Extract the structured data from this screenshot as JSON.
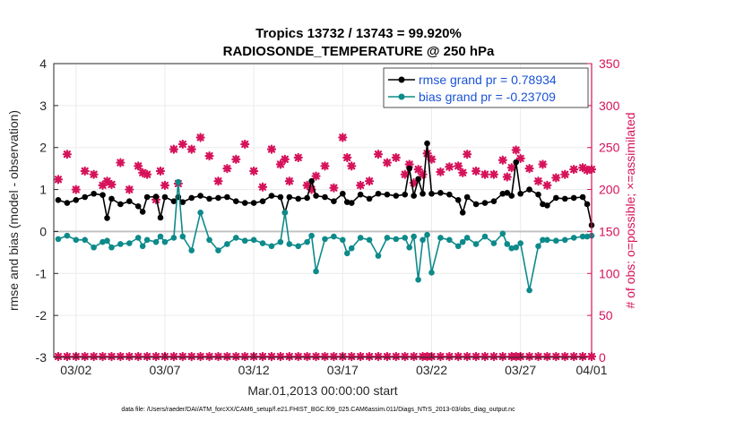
{
  "chart_data": {
    "type": "line",
    "title_line1": "Tropics 13732 / 13743 = 99.920%",
    "title_line2": "RADIOSONDE_TEMPERATURE @ 250 hPa",
    "xlabel": "Mar.01,2013 00:00:00 start",
    "ylabel_left": "rmse and bias (model - observation)",
    "ylabel_right": "# of obs: o=possible; ×=assimilated",
    "xlim": [
      0.75,
      31.0
    ],
    "ylim_left": [
      -3,
      4
    ],
    "ylim_right": [
      0,
      350
    ],
    "x_ticks": [
      {
        "x": 2,
        "label": "03/02"
      },
      {
        "x": 7,
        "label": "03/07"
      },
      {
        "x": 12,
        "label": "03/12"
      },
      {
        "x": 17,
        "label": "03/17"
      },
      {
        "x": 22,
        "label": "03/22"
      },
      {
        "x": 27,
        "label": "03/27"
      },
      {
        "x": 32,
        "label": "04/01"
      }
    ],
    "y_ticks_left": [
      "-3",
      "-2",
      "-1",
      "0",
      "1",
      "2",
      "3",
      "4"
    ],
    "y_ticks_right": [
      "0",
      "50",
      "100",
      "150",
      "200",
      "250",
      "300",
      "350"
    ],
    "grid": true,
    "legend_position": "top-right",
    "footer": "data file: /Users/raeder/DAI/ATM_forcXX/CAM6_setup/f.e21.FHIST_BGC.f09_025.CAM6assim.011/Diags_NTrS_2013-03/obs_diag_output.nc",
    "colors": {
      "rmse": "#000000",
      "bias": "#0d8a8a",
      "obs": "#d6125a",
      "zero": "#bfbfbf",
      "legend_text": "#1a53d6",
      "grid": "#ebebeb"
    },
    "series": [
      {
        "name": "rmse grand pr = 0.78934",
        "color": "#000000",
        "x": [
          1.0,
          1.5,
          2.0,
          2.5,
          3.0,
          3.5,
          3.75,
          4.0,
          4.5,
          5.0,
          5.5,
          5.75,
          6.0,
          6.5,
          6.75,
          7.0,
          7.5,
          7.75,
          8.0,
          8.5,
          9.0,
          9.5,
          10.0,
          10.5,
          11.0,
          11.5,
          12.0,
          12.5,
          13.0,
          13.5,
          13.75,
          14.0,
          14.5,
          15.0,
          15.25,
          15.5,
          16.0,
          16.5,
          17.0,
          17.25,
          17.5,
          18.0,
          18.5,
          19.0,
          19.5,
          20.0,
          20.5,
          20.75,
          21.0,
          21.25,
          21.5,
          21.75,
          22.0,
          22.5,
          23.0,
          23.5,
          23.75,
          24.0,
          24.5,
          25.0,
          25.5,
          26.0,
          26.25,
          26.5,
          26.75,
          27.0,
          27.5,
          28.0,
          28.25,
          28.5,
          29.0,
          29.5,
          30.0,
          30.5,
          30.75,
          31.0
        ],
        "y": [
          0.75,
          0.68,
          0.75,
          0.82,
          0.9,
          0.87,
          0.32,
          0.78,
          0.65,
          0.72,
          0.6,
          0.47,
          0.82,
          0.83,
          0.33,
          0.82,
          0.72,
          0.82,
          0.7,
          0.8,
          0.85,
          0.78,
          0.8,
          0.82,
          0.72,
          0.68,
          0.68,
          0.72,
          0.85,
          0.82,
          0.45,
          0.82,
          0.78,
          0.8,
          1.2,
          0.85,
          0.82,
          0.72,
          0.9,
          0.7,
          0.68,
          0.88,
          0.78,
          0.9,
          0.88,
          0.85,
          0.88,
          1.5,
          0.85,
          1.25,
          0.9,
          2.1,
          0.9,
          0.92,
          0.88,
          0.75,
          0.45,
          0.82,
          0.65,
          0.68,
          0.72,
          0.9,
          0.92,
          0.85,
          1.65,
          0.9,
          1.0,
          0.88,
          0.65,
          0.62,
          0.8,
          0.78,
          0.8,
          0.82,
          0.65,
          0.15
        ]
      },
      {
        "name": "bias grand pr = -0.23709",
        "color": "#0d8a8a",
        "x": [
          1.0,
          1.5,
          2.0,
          2.5,
          3.0,
          3.5,
          3.75,
          4.0,
          4.5,
          5.0,
          5.5,
          5.75,
          6.0,
          6.5,
          6.75,
          7.0,
          7.5,
          7.75,
          8.0,
          8.5,
          9.0,
          9.5,
          10.0,
          10.5,
          11.0,
          11.5,
          12.0,
          12.5,
          13.0,
          13.5,
          13.75,
          14.0,
          14.5,
          15.0,
          15.25,
          15.5,
          16.0,
          16.5,
          17.0,
          17.25,
          17.5,
          18.0,
          18.5,
          19.0,
          19.5,
          20.0,
          20.5,
          20.75,
          21.0,
          21.25,
          21.5,
          21.75,
          22.0,
          22.5,
          23.0,
          23.5,
          23.75,
          24.0,
          24.5,
          25.0,
          25.5,
          26.0,
          26.25,
          26.5,
          26.75,
          27.0,
          27.5,
          28.0,
          28.25,
          28.5,
          29.0,
          29.5,
          30.0,
          30.5,
          30.75,
          31.0
        ],
        "y": [
          -0.18,
          -0.1,
          -0.2,
          -0.2,
          -0.38,
          -0.25,
          -0.22,
          -0.38,
          -0.3,
          -0.28,
          -0.15,
          -0.35,
          -0.2,
          -0.25,
          -0.12,
          -0.25,
          -0.15,
          1.18,
          -0.12,
          -0.45,
          0.45,
          -0.2,
          -0.45,
          -0.3,
          -0.15,
          -0.22,
          -0.2,
          -0.28,
          -0.35,
          -0.25,
          0.45,
          -0.3,
          -0.35,
          -0.25,
          -0.1,
          -0.95,
          -0.18,
          -0.12,
          -0.2,
          -0.52,
          -0.4,
          -0.15,
          -0.2,
          -0.58,
          -0.15,
          -0.18,
          -0.15,
          -0.38,
          -0.12,
          -1.15,
          -0.2,
          -0.08,
          -0.98,
          -0.15,
          -0.2,
          -0.35,
          -0.25,
          -0.15,
          -0.3,
          -0.12,
          -0.28,
          -0.05,
          -0.3,
          -0.4,
          -0.38,
          -0.28,
          -1.4,
          -0.35,
          -0.2,
          -0.2,
          -0.22,
          -0.2,
          -0.15,
          -0.12,
          -0.12,
          -0.1
        ]
      },
      {
        "name": "obs assimilated",
        "color": "#d6125a",
        "x": [
          1.0,
          1.5,
          2.0,
          2.5,
          3.0,
          3.5,
          3.75,
          4.0,
          4.5,
          5.0,
          5.5,
          5.75,
          6.0,
          6.5,
          6.75,
          7.0,
          7.5,
          7.75,
          8.0,
          8.5,
          9.0,
          9.5,
          10.0,
          10.5,
          11.0,
          11.5,
          12.0,
          12.5,
          13.0,
          13.5,
          13.75,
          14.0,
          14.5,
          15.0,
          15.25,
          15.5,
          16.0,
          16.5,
          17.0,
          17.25,
          17.5,
          18.0,
          18.5,
          19.0,
          19.5,
          20.0,
          20.5,
          20.75,
          21.0,
          21.25,
          21.5,
          21.75,
          22.0,
          22.5,
          23.0,
          23.5,
          23.75,
          24.0,
          24.5,
          25.0,
          25.5,
          26.0,
          26.25,
          26.5,
          26.75,
          27.0,
          27.5,
          28.0,
          28.25,
          28.5,
          29.0,
          29.5,
          30.0,
          30.5,
          30.75,
          31.0
        ],
        "y": [
          212,
          242,
          200,
          222,
          218,
          205,
          210,
          206,
          232,
          200,
          228,
          220,
          218,
          188,
          222,
          205,
          248,
          207,
          254,
          248,
          262,
          240,
          210,
          225,
          236,
          254,
          222,
          203,
          248,
          230,
          236,
          210,
          238,
          205,
          200,
          216,
          228,
          202,
          262,
          238,
          228,
          205,
          210,
          242,
          232,
          238,
          218,
          230,
          208,
          224,
          218,
          243,
          236,
          221,
          227,
          228,
          220,
          242,
          222,
          218,
          218,
          235,
          215,
          226,
          247,
          237,
          225,
          210,
          230,
          205,
          214,
          218,
          224,
          226,
          223,
          224
        ]
      }
    ],
    "obs_zero_x": [
      1.0,
      1.5,
      2.0,
      2.5,
      3.0,
      3.5,
      4.0,
      4.5,
      5.0,
      5.5,
      6.0,
      6.5,
      7.0,
      7.5,
      8.0,
      8.5,
      9.0,
      9.5,
      10.0,
      10.5,
      11.0,
      11.5,
      12.0,
      12.5,
      13.0,
      13.5,
      14.0,
      14.5,
      15.0,
      15.5,
      16.0,
      16.5,
      17.0,
      17.5,
      18.0,
      18.5,
      19.0,
      19.5,
      20.0,
      20.5,
      21.0,
      21.5,
      21.75,
      22.0,
      22.5,
      23.0,
      23.5,
      24.0,
      24.5,
      25.0,
      25.5,
      26.0,
      26.5,
      26.75,
      27.0,
      27.5,
      28.0,
      28.5,
      29.0,
      29.5,
      30.0,
      30.5,
      31.0
    ]
  }
}
